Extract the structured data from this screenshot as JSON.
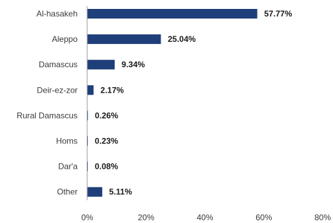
{
  "chart_data": {
    "type": "bar",
    "orientation": "horizontal",
    "categories": [
      "Al-hasakeh",
      "Aleppo",
      "Damascus",
      "Deir-ez-zor",
      "Rural Damascus",
      "Homs",
      "Dar'a",
      "Other"
    ],
    "values": [
      57.77,
      25.04,
      9.34,
      2.17,
      0.26,
      0.23,
      0.08,
      5.11
    ],
    "value_labels": [
      "57.77%",
      "25.04%",
      "9.34%",
      "2.17%",
      "0.26%",
      "0.23%",
      "0.08%",
      "5.11%"
    ],
    "xlim": [
      0,
      80
    ],
    "x_ticks": [
      0,
      20,
      40,
      60,
      80
    ],
    "x_tick_labels": [
      "0%",
      "20%",
      "40%",
      "60%",
      "80%"
    ],
    "grid": false,
    "bar_color": "#1f3f7a",
    "title": "",
    "xlabel": "",
    "ylabel": ""
  }
}
